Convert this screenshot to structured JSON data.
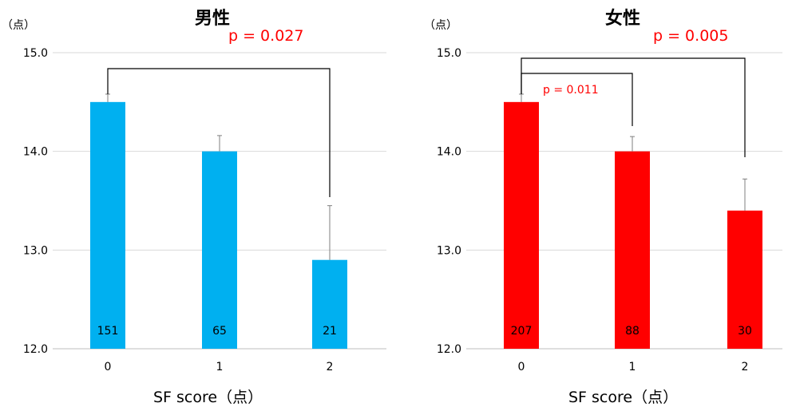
{
  "chart_data": [
    {
      "type": "bar",
      "title": "男性",
      "unit_label": "（点）",
      "xlabel": "SF score（点）",
      "categories": [
        "0",
        "1",
        "2"
      ],
      "values": [
        14.5,
        14.0,
        12.9
      ],
      "error_upper": [
        14.58,
        14.16,
        13.45
      ],
      "n_labels": [
        "151",
        "65",
        "21"
      ],
      "ylim": [
        12.0,
        15.0
      ],
      "yticks": [
        "12.0",
        "13.0",
        "14.0",
        "15.0"
      ],
      "bar_color": "#00b0f0",
      "grid": true,
      "comparisons": [
        {
          "from": "0",
          "to": "2",
          "label": "p = 0.027"
        }
      ]
    },
    {
      "type": "bar",
      "title": "女性",
      "unit_label": "（点）",
      "xlabel": "SF score（点）",
      "categories": [
        "0",
        "1",
        "2"
      ],
      "values": [
        14.5,
        14.0,
        13.4
      ],
      "error_upper": [
        14.58,
        14.15,
        13.72
      ],
      "n_labels": [
        "207",
        "88",
        "30"
      ],
      "ylim": [
        12.0,
        15.0
      ],
      "yticks": [
        "12.0",
        "13.0",
        "14.0",
        "15.0"
      ],
      "bar_color": "#ff0000",
      "grid": true,
      "comparisons": [
        {
          "from": "0",
          "to": "2",
          "label": "p = 0.005"
        },
        {
          "from": "0",
          "to": "1",
          "label": "p = 0.011"
        }
      ]
    }
  ]
}
